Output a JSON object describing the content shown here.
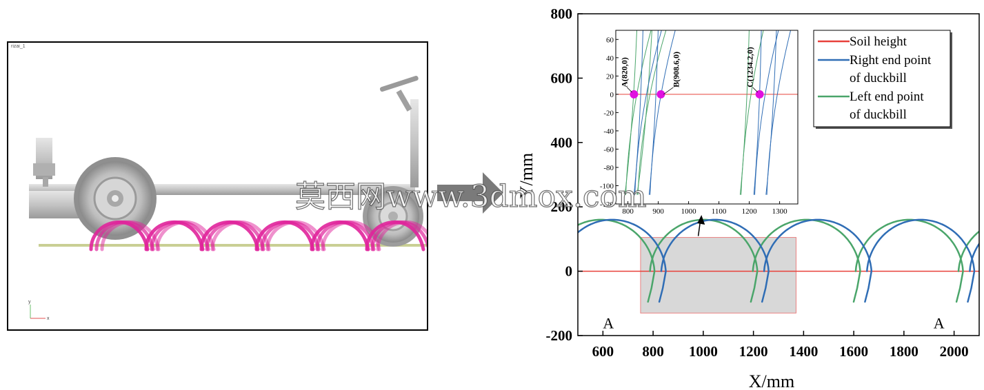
{
  "simulation": {
    "window_title": "rizai_1",
    "axis_y_letter": "y",
    "axis_x_letter": "x"
  },
  "watermark": "莫西网www.3dmox.com",
  "colors": {
    "soil": "#e8403a",
    "right": "#2f6db5",
    "left": "#4aa56a",
    "trajectory": "#e0239b",
    "marker": "#e010e0",
    "rect_fill": "#d8d8d8",
    "rect_stroke": "#e88080"
  },
  "chart_data": {
    "type": "line",
    "xlabel": "X/mm",
    "ylabel": "Y/mm",
    "xlim": [
      500,
      2100
    ],
    "ylim": [
      -200,
      800
    ],
    "xticks": [
      600,
      800,
      1000,
      1200,
      1400,
      1600,
      1800,
      2000
    ],
    "yticks": [
      -200,
      0,
      200,
      400,
      600,
      800
    ],
    "series": [
      {
        "name": "Soil height",
        "key": "soil",
        "x": [
          500,
          2100
        ],
        "y": [
          0,
          0
        ]
      },
      {
        "name": "Right end point of duckbill",
        "key": "right",
        "phase": 0
      },
      {
        "name": "Left end point of duckbill",
        "key": "left",
        "phase": -45
      }
    ],
    "legend": {
      "position": "top-right",
      "entries": [
        {
          "key": "soil",
          "lines": [
            "Soil height"
          ]
        },
        {
          "key": "right",
          "lines": [
            "Right end point",
            "of duckbill"
          ]
        },
        {
          "key": "left",
          "lines": [
            "Left end point",
            "of duckbill"
          ]
        }
      ]
    },
    "trajectory": {
      "period": 410,
      "peak_y": 160,
      "bottom_y": -95
    },
    "annotations": [
      {
        "text": "A",
        "x": 512,
        "y": -130
      },
      {
        "text": "A",
        "x": 1830,
        "y": -130
      }
    ],
    "highlight_region": {
      "x": [
        750,
        1370
      ],
      "y": [
        -130,
        105
      ]
    },
    "inset": {
      "xlim": [
        760,
        1360
      ],
      "ylim": [
        -120,
        70
      ],
      "xticks": [
        800,
        900,
        1000,
        1100,
        1200,
        1300
      ],
      "yticks": [
        -120,
        -100,
        -80,
        -60,
        -40,
        -20,
        0,
        20,
        40,
        60
      ],
      "points": [
        {
          "label": "A(820,0)",
          "x": 820,
          "y": 0
        },
        {
          "label": "B(908.6,0)",
          "x": 908.6,
          "y": 0
        },
        {
          "label": "C(1234.2,0)",
          "x": 1234.2,
          "y": 0
        }
      ]
    }
  }
}
